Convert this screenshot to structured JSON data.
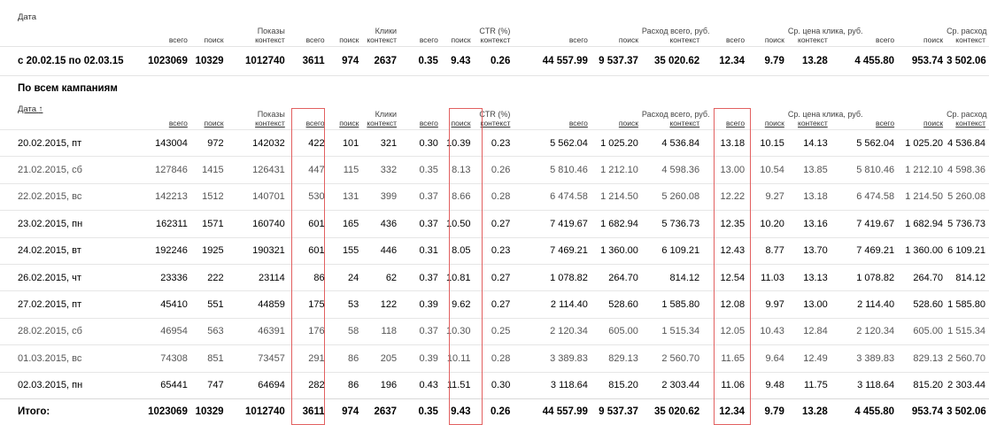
{
  "summary": {
    "date_label": "Дата",
    "group_impressions": "Показы",
    "group_clicks": "Клики",
    "group_ctr": "CTR (%)",
    "group_cost_total": "Расход всего, руб.",
    "group_cpc": "Ср. цена клика, руб.",
    "group_daily": "Ср. расход за день, руб.",
    "sub_total": "всего",
    "sub_search": "поиск",
    "sub_context": "контекст",
    "row": {
      "label": "с 20.02.15 по 02.03.15",
      "values": [
        "1023069",
        "10329",
        "1012740",
        "3611",
        "974",
        "2637",
        "0.35",
        "9.43",
        "0.26",
        "44 557.99",
        "9 537.37",
        "35 020.62",
        "12.34",
        "9.79",
        "13.28",
        "4 455.80",
        "953.74",
        "3 502.06"
      ]
    }
  },
  "campaign": {
    "title": "По всем кампаниям",
    "date_label": "Дата",
    "sort_arrow": "↑",
    "rows": [
      {
        "label": "20.02.2015, пт",
        "values": [
          "143004",
          "972",
          "142032",
          "422",
          "101",
          "321",
          "0.30",
          "10.39",
          "0.23",
          "5 562.04",
          "1 025.20",
          "4 536.84",
          "13.18",
          "10.15",
          "14.13",
          "5 562.04",
          "1 025.20",
          "4 536.84"
        ]
      },
      {
        "label": "21.02.2015, сб",
        "values": [
          "127846",
          "1415",
          "126431",
          "447",
          "115",
          "332",
          "0.35",
          "8.13",
          "0.26",
          "5 810.46",
          "1 212.10",
          "4 598.36",
          "13.00",
          "10.54",
          "13.85",
          "5 810.46",
          "1 212.10",
          "4 598.36"
        ]
      },
      {
        "label": "22.02.2015, вс",
        "values": [
          "142213",
          "1512",
          "140701",
          "530",
          "131",
          "399",
          "0.37",
          "8.66",
          "0.28",
          "6 474.58",
          "1 214.50",
          "5 260.08",
          "12.22",
          "9.27",
          "13.18",
          "6 474.58",
          "1 214.50",
          "5 260.08"
        ]
      },
      {
        "label": "23.02.2015, пн",
        "values": [
          "162311",
          "1571",
          "160740",
          "601",
          "165",
          "436",
          "0.37",
          "10.50",
          "0.27",
          "7 419.67",
          "1 682.94",
          "5 736.73",
          "12.35",
          "10.20",
          "13.16",
          "7 419.67",
          "1 682.94",
          "5 736.73"
        ]
      },
      {
        "label": "24.02.2015, вт",
        "values": [
          "192246",
          "1925",
          "190321",
          "601",
          "155",
          "446",
          "0.31",
          "8.05",
          "0.23",
          "7 469.21",
          "1 360.00",
          "6 109.21",
          "12.43",
          "8.77",
          "13.70",
          "7 469.21",
          "1 360.00",
          "6 109.21"
        ]
      },
      {
        "label": "26.02.2015, чт",
        "values": [
          "23336",
          "222",
          "23114",
          "86",
          "24",
          "62",
          "0.37",
          "10.81",
          "0.27",
          "1 078.82",
          "264.70",
          "814.12",
          "12.54",
          "11.03",
          "13.13",
          "1 078.82",
          "264.70",
          "814.12"
        ]
      },
      {
        "label": "27.02.2015, пт",
        "values": [
          "45410",
          "551",
          "44859",
          "175",
          "53",
          "122",
          "0.39",
          "9.62",
          "0.27",
          "2 114.40",
          "528.60",
          "1 585.80",
          "12.08",
          "9.97",
          "13.00",
          "2 114.40",
          "528.60",
          "1 585.80"
        ]
      },
      {
        "label": "28.02.2015, сб",
        "values": [
          "46954",
          "563",
          "46391",
          "176",
          "58",
          "118",
          "0.37",
          "10.30",
          "0.25",
          "2 120.34",
          "605.00",
          "1 515.34",
          "12.05",
          "10.43",
          "12.84",
          "2 120.34",
          "605.00",
          "1 515.34"
        ]
      },
      {
        "label": "01.03.2015, вс",
        "values": [
          "74308",
          "851",
          "73457",
          "291",
          "86",
          "205",
          "0.39",
          "10.11",
          "0.28",
          "3 389.83",
          "829.13",
          "2 560.70",
          "11.65",
          "9.64",
          "12.49",
          "3 389.83",
          "829.13",
          "2 560.70"
        ]
      },
      {
        "label": "02.03.2015, пн",
        "values": [
          "65441",
          "747",
          "64694",
          "282",
          "86",
          "196",
          "0.43",
          "11.51",
          "0.30",
          "3 118.64",
          "815.20",
          "2 303.44",
          "11.06",
          "9.48",
          "11.75",
          "3 118.64",
          "815.20",
          "2 303.44"
        ]
      }
    ],
    "total": {
      "label": "Итого:",
      "values": [
        "1023069",
        "10329",
        "1012740",
        "3611",
        "974",
        "2637",
        "0.35",
        "9.43",
        "0.26",
        "44 557.99",
        "9 537.37",
        "35 020.62",
        "12.34",
        "9.79",
        "13.28",
        "4 455.80",
        "953.74",
        "3 502.06"
      ]
    }
  },
  "colors": {
    "highlight": "#e26060"
  }
}
